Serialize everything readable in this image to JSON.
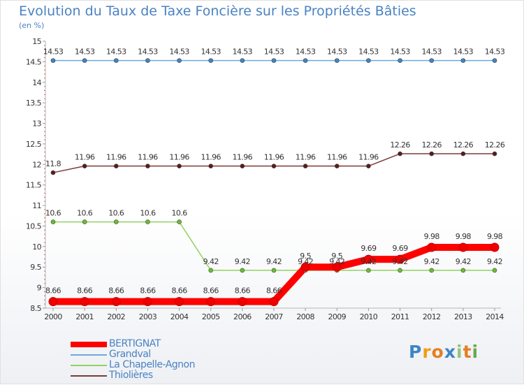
{
  "title": "Evolution du Taux de Taxe Foncière sur les Propriétés Bâties",
  "subtitle": "(en %)",
  "logo_text": "Proxiti",
  "chart_data": {
    "type": "line",
    "title": "Evolution du Taux de Taxe Foncière sur les Propriétés Bâties",
    "ylabel": "(en %)",
    "xlabel": "",
    "ylim": [
      8.5,
      15
    ],
    "yticks": [
      8.5,
      9,
      9.5,
      10,
      10.5,
      11,
      11.5,
      12,
      12.5,
      13,
      13.5,
      14,
      14.5,
      15
    ],
    "ytick_labels": [
      "8.5",
      "9",
      "9.5",
      "10",
      "10.5",
      "11",
      "11.5",
      "12",
      "12.5",
      "13",
      "13.5",
      "14",
      "14.5",
      "15"
    ],
    "categories": [
      "2000",
      "2001",
      "2002",
      "2003",
      "2004",
      "2005",
      "2006",
      "2007",
      "2008",
      "2009",
      "2010",
      "2011",
      "2012",
      "2013",
      "2014"
    ],
    "series": [
      {
        "name": "BERTIGNAT",
        "color": "#ff0000",
        "marker_color": "#ee0000",
        "emphasis": true,
        "values": [
          8.66,
          8.66,
          8.66,
          8.66,
          8.66,
          8.66,
          8.66,
          8.66,
          9.5,
          9.5,
          9.69,
          9.69,
          9.98,
          9.98,
          9.98
        ],
        "labels": [
          "8.66",
          "8.66",
          "8.66",
          "8.66",
          "8.66",
          "8.66",
          "8.66",
          "8.66",
          "9.5",
          "9.5",
          "9.69",
          "9.69",
          "9.98",
          "9.98",
          "9.98"
        ]
      },
      {
        "name": "Grandval",
        "color": "#6fa8dc",
        "marker_color": "#3d85c6",
        "emphasis": false,
        "values": [
          14.53,
          14.53,
          14.53,
          14.53,
          14.53,
          14.53,
          14.53,
          14.53,
          14.53,
          14.53,
          14.53,
          14.53,
          14.53,
          14.53,
          14.53
        ],
        "labels": [
          "14.53",
          "14.53",
          "14.53",
          "14.53",
          "14.53",
          "14.53",
          "14.53",
          "14.53",
          "14.53",
          "14.53",
          "14.53",
          "14.53",
          "14.53",
          "14.53",
          "14.53"
        ]
      },
      {
        "name": "La Chapelle-Agnon",
        "color": "#93d260",
        "marker_color": "#6abf2e",
        "emphasis": false,
        "values": [
          10.6,
          10.6,
          10.6,
          10.6,
          10.6,
          9.42,
          9.42,
          9.42,
          9.42,
          9.42,
          9.42,
          9.42,
          9.42,
          9.42,
          9.42
        ],
        "labels": [
          "10.6",
          "10.6",
          "10.6",
          "10.6",
          "10.6",
          "9.42",
          "9.42",
          "9.42",
          "9.42",
          "9.42",
          "9.42",
          "9.42",
          "9.42",
          "9.42",
          "9.42"
        ]
      },
      {
        "name": "Thiolières",
        "color": "#7a3b3b",
        "marker_color": "#5c1a1a",
        "emphasis": false,
        "values": [
          11.8,
          11.96,
          11.96,
          11.96,
          11.96,
          11.96,
          11.96,
          11.96,
          11.96,
          11.96,
          11.96,
          12.26,
          12.26,
          12.26,
          12.26
        ],
        "labels": [
          "11.8",
          "11.96",
          "11.96",
          "11.96",
          "11.96",
          "11.96",
          "11.96",
          "11.96",
          "11.96",
          "11.96",
          "11.96",
          "12.26",
          "12.26",
          "12.26",
          "12.26"
        ]
      }
    ],
    "legend_position": "bottom-left"
  }
}
